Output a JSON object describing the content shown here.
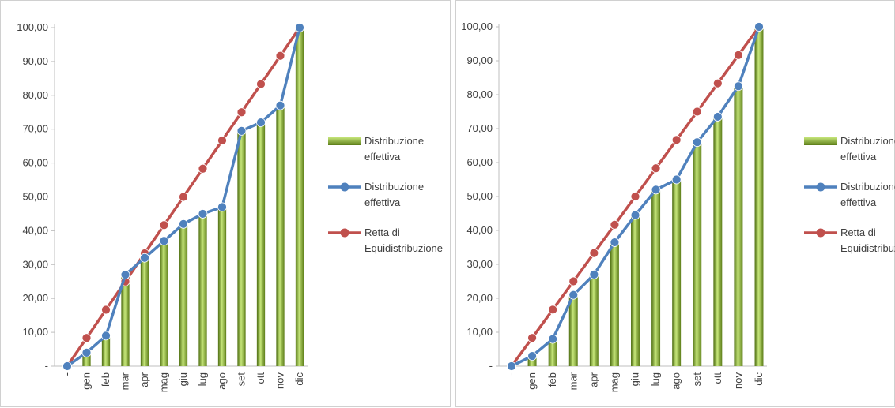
{
  "chart_data": [
    {
      "type": "bar",
      "categories": [
        "-",
        "gen",
        "feb",
        "mar",
        "apr",
        "mag",
        "giu",
        "lug",
        "ago",
        "set",
        "ott",
        "nov",
        "dic"
      ],
      "ylim": [
        0,
        100
      ],
      "y_ticks": [
        "-",
        "10,00",
        "20,00",
        "30,00",
        "40,00",
        "50,00",
        "60,00",
        "70,00",
        "80,00",
        "90,00",
        "100,00"
      ],
      "grid": false,
      "legend_position": "right",
      "series": [
        {
          "name": "Distribuzione effettiva",
          "type": "bar",
          "color": "#7ba428",
          "values": [
            0,
            4,
            9,
            27,
            32,
            37,
            42,
            45,
            47,
            69.5,
            72,
            77,
            100
          ]
        },
        {
          "name": "Distribuzione effettiva",
          "type": "line",
          "color": "#4f81bd",
          "values": [
            0,
            4,
            9,
            27,
            32,
            37,
            42,
            45,
            47,
            69.5,
            72,
            77,
            100
          ]
        },
        {
          "name": "Retta di Equidistribuzione",
          "type": "line",
          "color": "#c0504d",
          "values": [
            0,
            8.33,
            16.67,
            25,
            33.33,
            41.67,
            50,
            58.33,
            66.67,
            75,
            83.33,
            91.67,
            100
          ]
        }
      ]
    },
    {
      "type": "bar",
      "categories": [
        "-",
        "gen",
        "feb",
        "mar",
        "apr",
        "mag",
        "giu",
        "lug",
        "ago",
        "set",
        "ott",
        "nov",
        "dic"
      ],
      "ylim": [
        0,
        100
      ],
      "y_ticks": [
        "-",
        "10,00",
        "20,00",
        "30,00",
        "40,00",
        "50,00",
        "60,00",
        "70,00",
        "80,00",
        "90,00",
        "100,00"
      ],
      "grid": false,
      "legend_position": "right",
      "series": [
        {
          "name": "Distribuzione effettiva",
          "type": "bar",
          "color": "#7ba428",
          "values": [
            0,
            3,
            8,
            21,
            27,
            36.5,
            44.5,
            52,
            55,
            66,
            73.5,
            82.5,
            100
          ]
        },
        {
          "name": "Distribuzione effettiva",
          "type": "line",
          "color": "#4f81bd",
          "values": [
            0,
            3,
            8,
            21,
            27,
            36.5,
            44.5,
            52,
            55,
            66,
            73.5,
            82.5,
            100
          ]
        },
        {
          "name": "Retta di Equidistribuzione",
          "type": "line",
          "color": "#c0504d",
          "values": [
            0,
            8.33,
            16.67,
            25,
            33.33,
            41.67,
            50,
            58.33,
            66.67,
            75,
            83.33,
            91.67,
            100
          ]
        }
      ]
    }
  ]
}
